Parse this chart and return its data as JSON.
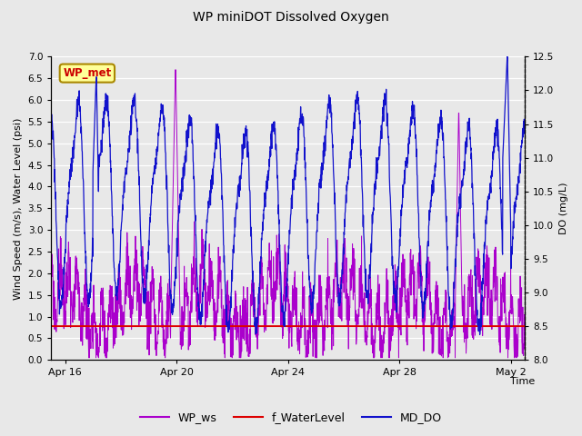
{
  "title": "WP miniDOT Dissolved Oxygen",
  "ylabel_left": "Wind Speed (m/s), Water Level (psi)",
  "ylabel_right": "DO (mg/L)",
  "xlabel": "Time",
  "ylim_left": [
    0.0,
    7.0
  ],
  "ylim_right": [
    8.0,
    12.5
  ],
  "annotation_text": "WP_met",
  "annotation_box_facecolor": "#ffff99",
  "annotation_box_edgecolor": "#aa8800",
  "annotation_text_color": "#cc0000",
  "fig_facecolor": "#e8e8e8",
  "plot_facecolor": "#e8e8e8",
  "wp_ws_color": "#aa00cc",
  "f_waterlevel_color": "#dd0000",
  "md_do_color": "#1111cc",
  "legend_labels": [
    "WP_ws",
    "f_WaterLevel",
    "MD_DO"
  ],
  "legend_colors": [
    "#aa00cc",
    "#dd0000",
    "#1111cc"
  ],
  "x_tick_labels": [
    "Apr 16",
    "Apr 20",
    "Apr 24",
    "Apr 28",
    "May 2"
  ],
  "ylim_left_ticks": [
    0.0,
    0.5,
    1.0,
    1.5,
    2.0,
    2.5,
    3.0,
    3.5,
    4.0,
    4.5,
    5.0,
    5.5,
    6.0,
    6.5,
    7.0
  ],
  "ylim_right_ticks": [
    8.0,
    8.5,
    9.0,
    9.5,
    10.0,
    10.5,
    11.0,
    11.5,
    12.0,
    12.5
  ],
  "total_days": 17.0,
  "seed": 99
}
